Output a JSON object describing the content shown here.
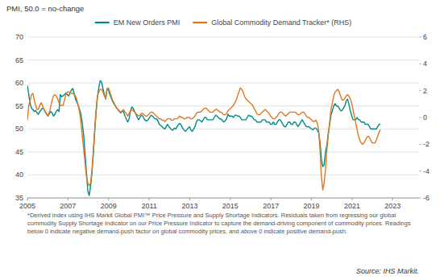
{
  "chart_data": {
    "type": "line",
    "title": "PMI, 50.0 = no-change",
    "footnote": "*Derived index using IHS Markit Global PMI™ Price Pressure  and Supply Shortage Indicators. Residuals taken from regressing our global commodity Supply Shortage Indicator on our Price Pressure  Indicator to capture the demand-driving component of commodity prices. Readings below 0 indicate negative demand-push factor on global commodity prices, and above 0 indicate positive demand-push.",
    "source": "Source: IHS Markit.",
    "xlim": [
      2005.0,
      2024.3
    ],
    "xticks": [
      2005,
      2007,
      2009,
      2011,
      2013,
      2015,
      2017,
      2019,
      2021,
      2023
    ],
    "ylim": [
      35,
      70
    ],
    "yticks": [
      35,
      40,
      45,
      50,
      55,
      60,
      65,
      70
    ],
    "y2lim": [
      -6,
      6
    ],
    "y2ticks": [
      -6,
      -4,
      -2,
      0,
      2,
      4,
      6
    ],
    "grid": true,
    "legend": "top",
    "x": [
      2005.0,
      2005.068,
      2005.135,
      2005.203,
      2005.271,
      2005.339,
      2005.406,
      2005.474,
      2005.542,
      2005.609,
      2005.677,
      2005.745,
      2005.812,
      2005.88,
      2005.948,
      2006.016,
      2006.083,
      2006.151,
      2006.219,
      2006.286,
      2006.354,
      2006.422,
      2006.489,
      2006.557,
      2006.625,
      2006.693,
      2006.76,
      2006.828,
      2006.896,
      2006.963,
      2007.031,
      2007.099,
      2007.167,
      2007.234,
      2007.302,
      2007.37,
      2007.437,
      2007.505,
      2007.573,
      2007.64,
      2007.708,
      2007.776,
      2007.844,
      2007.911,
      2007.979,
      2008.047,
      2008.114,
      2008.182,
      2008.25,
      2008.318,
      2008.385,
      2008.453,
      2008.521,
      2008.588,
      2008.656,
      2008.724,
      2008.791,
      2008.859,
      2008.927,
      2008.995,
      2009.062,
      2009.13,
      2009.198,
      2009.265,
      2009.333,
      2009.401,
      2009.468,
      2009.536,
      2009.604,
      2009.672,
      2009.739,
      2009.807,
      2009.875,
      2009.942,
      2010.01,
      2010.078,
      2010.146,
      2010.213,
      2010.281,
      2010.349,
      2010.416,
      2010.484,
      2010.552,
      2010.619,
      2010.687,
      2010.755,
      2010.823,
      2010.89,
      2010.958,
      2011.026,
      2011.093,
      2011.161,
      2011.229,
      2011.296,
      2011.364,
      2011.432,
      2011.5,
      2011.567,
      2011.635,
      2011.703,
      2011.77,
      2011.838,
      2011.906,
      2011.974,
      2012.041,
      2012.109,
      2012.177,
      2012.244,
      2012.312,
      2012.38,
      2012.447,
      2012.515,
      2012.583,
      2012.651,
      2012.718,
      2012.786,
      2012.854,
      2012.921,
      2012.989,
      2013.057,
      2013.125,
      2013.192,
      2013.26,
      2013.328,
      2013.395,
      2013.463,
      2013.531,
      2013.598,
      2013.666,
      2013.734,
      2013.802,
      2013.869,
      2013.937,
      2014.005,
      2014.072,
      2014.14,
      2014.208,
      2014.275,
      2014.343,
      2014.411,
      2014.479,
      2014.546,
      2014.614,
      2014.682,
      2014.749,
      2014.817,
      2014.885,
      2014.953,
      2015.02,
      2015.088,
      2015.156,
      2015.223,
      2015.291,
      2015.359,
      2015.426,
      2015.494,
      2015.562,
      2015.63,
      2015.697,
      2015.765,
      2015.833,
      2015.9,
      2015.968,
      2016.036,
      2016.104,
      2016.171,
      2016.239,
      2016.307,
      2016.374,
      2016.442,
      2016.51,
      2016.577,
      2016.645,
      2016.713,
      2016.781,
      2016.848,
      2016.916,
      2016.984,
      2017.051,
      2017.119,
      2017.187,
      2017.254,
      2017.322,
      2017.39,
      2017.458,
      2017.525,
      2017.593,
      2017.661,
      2017.728,
      2017.796,
      2017.864,
      2017.932,
      2017.999,
      2018.067,
      2018.135,
      2018.202,
      2018.27,
      2018.338,
      2018.405,
      2018.473,
      2018.541,
      2018.609,
      2018.676,
      2018.744,
      2018.812,
      2018.879,
      2018.947,
      2019.015,
      2019.082,
      2019.15,
      2019.218,
      2019.286,
      2019.353,
      2019.421,
      2019.489,
      2019.556,
      2019.624,
      2019.692,
      2019.76,
      2019.827,
      2019.895,
      2019.963,
      2020.03,
      2020.098,
      2020.166,
      2020.233,
      2020.301,
      2020.369,
      2020.437,
      2020.504,
      2020.572,
      2020.64,
      2020.707,
      2020.775,
      2020.843,
      2020.911,
      2020.978,
      2021.046,
      2021.114,
      2021.181,
      2021.249,
      2021.317,
      2021.384,
      2021.452,
      2021.52,
      2021.588,
      2021.655,
      2021.723,
      2021.791,
      2021.858,
      2021.926,
      2021.994,
      2022.061,
      2022.129,
      2022.197,
      2022.265,
      2022.332,
      2022.4
    ],
    "series": [
      {
        "name": "EM New Orders PMI",
        "color": "#008B8B",
        "values": [
          59.5,
          57.5,
          55.5,
          54.5,
          54.2,
          53.8,
          54.0,
          53.5,
          53.2,
          53.8,
          54.2,
          54.5,
          54.3,
          53.8,
          53.2,
          52.8,
          53.3,
          53.8,
          53.5,
          52.8,
          53.2,
          53.8,
          54.2,
          53.8,
          57.5,
          57.0,
          57.2,
          57.5,
          57.8,
          57.5,
          57.2,
          57.8,
          58.5,
          58.8,
          57.8,
          56.5,
          55.8,
          55.2,
          54.2,
          53.2,
          51.2,
          48.5,
          44.5,
          40.5,
          36.5,
          35.5,
          37.5,
          40.5,
          44.5,
          49.5,
          53.5,
          57.0,
          59.0,
          60.5,
          60.2,
          58.8,
          57.5,
          56.5,
          58.8,
          58.5,
          57.5,
          56.8,
          56.0,
          55.5,
          55.0,
          54.5,
          54.2,
          53.8,
          53.5,
          53.8,
          53.8,
          52.8,
          52.2,
          51.5,
          52.2,
          53.8,
          54.8,
          54.5,
          53.8,
          53.2,
          52.5,
          52.0,
          52.5,
          53.0,
          52.8,
          52.2,
          51.8,
          51.8,
          52.0,
          52.5,
          53.0,
          52.8,
          52.5,
          52.2,
          52.2,
          51.8,
          51.0,
          50.8,
          50.5,
          50.2,
          50.0,
          50.5,
          51.0,
          50.5,
          50.2,
          49.8,
          49.8,
          50.2,
          50.0,
          50.5,
          51.0,
          51.2,
          50.8,
          50.2,
          49.8,
          49.5,
          49.8,
          50.2,
          50.5,
          49.8,
          49.5,
          50.0,
          50.5,
          51.5,
          52.0,
          52.0,
          51.8,
          51.5,
          52.0,
          52.5,
          52.5,
          52.0,
          52.0,
          52.0,
          52.0,
          52.0,
          52.5,
          53.0,
          52.8,
          52.5,
          52.2,
          52.2,
          51.8,
          51.5,
          51.8,
          52.2,
          53.2,
          52.8,
          52.8,
          52.8,
          52.5,
          53.0,
          53.0,
          52.8,
          52.8,
          52.5,
          52.0,
          52.0,
          52.0,
          52.0,
          52.5,
          53.0,
          52.8,
          52.8,
          52.5,
          52.0,
          52.0,
          51.5,
          51.5,
          51.5,
          51.5,
          52.0,
          52.0,
          52.0,
          51.5,
          51.5,
          51.5,
          51.0,
          51.0,
          51.5,
          51.0,
          51.0,
          51.5,
          52.0,
          52.0,
          51.5,
          51.0,
          50.5,
          50.5,
          51.0,
          51.5,
          51.5,
          51.0,
          51.0,
          51.5,
          51.5,
          51.0,
          50.5,
          51.0,
          51.5,
          52.0,
          51.5,
          51.0,
          50.5,
          50.5,
          50.5,
          50.2,
          50.0,
          49.8,
          50.2,
          50.2,
          49.8,
          49.2,
          47.2,
          43.5,
          41.8,
          42.2,
          45.0,
          46.5,
          49.0,
          51.0,
          53.0,
          54.0,
          55.0,
          55.5,
          55.0,
          55.0,
          54.5,
          54.0,
          54.0,
          54.5,
          55.0,
          56.0,
          56.5,
          55.5,
          54.0,
          53.0,
          52.0,
          52.0,
          52.0,
          52.5,
          52.0,
          52.0,
          51.5,
          51.5,
          51.5,
          51.0,
          51.0,
          51.0,
          50.5,
          50.0,
          50.0,
          50.0,
          50.0,
          50.0,
          50.5,
          51.0,
          51.0
        ]
      },
      {
        "name": "Global Commodity Demand Tracker* (RHS)",
        "color": "#E07820",
        "axis": "y2",
        "values": [
          -0.2,
          0.9,
          1.3,
          1.7,
          1.8,
          1.3,
          0.9,
          0.6,
          0.6,
          0.9,
          1.1,
          0.9,
          0.6,
          0.4,
          0.3,
          0.1,
          0.4,
          0.8,
          1.3,
          1.6,
          1.7,
          1.6,
          1.4,
          1.1,
          0.9,
          0.9,
          0.9,
          1.3,
          1.7,
          1.9,
          1.9,
          1.9,
          1.8,
          1.8,
          1.7,
          1.6,
          1.3,
          0.9,
          0.4,
          -0.4,
          -1.4,
          -2.4,
          -3.4,
          -4.4,
          -4.9,
          -5.1,
          -4.9,
          -3.9,
          -2.4,
          -0.9,
          0.6,
          1.6,
          1.9,
          2.1,
          2.1,
          1.9,
          1.6,
          1.4,
          2.1,
          2.2,
          1.9,
          1.6,
          1.3,
          1.1,
          0.9,
          0.7,
          0.6,
          0.5,
          0.4,
          0.5,
          0.6,
          0.4,
          0.3,
          0.1,
          0.3,
          0.5,
          0.6,
          0.5,
          0.4,
          0.3,
          0.2,
          0.1,
          0.2,
          0.3,
          0.3,
          0.2,
          0.1,
          0.1,
          0.2,
          0.3,
          0.4,
          0.4,
          0.3,
          0.2,
          0.1,
          0.0,
          -0.1,
          -0.1,
          -0.2,
          -0.2,
          -0.3,
          -0.2,
          -0.1,
          -0.1,
          -0.1,
          -0.2,
          -0.2,
          -0.1,
          -0.1,
          -0.1,
          0.0,
          0.1,
          0.0,
          0.0,
          -0.1,
          -0.1,
          0.0,
          0.0,
          0.0,
          -0.1,
          -0.1,
          0.0,
          0.1,
          0.3,
          0.4,
          0.4,
          0.4,
          0.5,
          0.6,
          0.7,
          0.7,
          0.6,
          0.5,
          0.4,
          0.4,
          0.4,
          0.5,
          0.6,
          0.6,
          0.5,
          0.4,
          0.4,
          0.3,
          0.2,
          0.2,
          0.3,
          0.5,
          0.6,
          0.7,
          0.8,
          0.9,
          1.1,
          1.3,
          1.6,
          1.9,
          2.2,
          2.1,
          1.9,
          1.6,
          1.4,
          1.3,
          1.2,
          1.1,
          1.0,
          0.9,
          0.7,
          0.5,
          0.3,
          0.2,
          0.2,
          0.3,
          0.4,
          0.5,
          0.6,
          0.5,
          0.4,
          0.3,
          0.1,
          0.0,
          -0.1,
          -0.1,
          0.0,
          0.1,
          0.3,
          0.4,
          0.4,
          0.3,
          0.2,
          0.1,
          0.2,
          0.3,
          0.4,
          0.4,
          0.4,
          0.4,
          0.4,
          0.3,
          0.2,
          0.2,
          0.3,
          0.4,
          0.4,
          0.3,
          0.1,
          0.0,
          0.0,
          -0.1,
          -0.2,
          -0.3,
          -0.3,
          -0.2,
          -0.4,
          -0.9,
          -2.4,
          -4.4,
          -5.4,
          -4.9,
          -3.9,
          -2.4,
          -1.4,
          -0.4,
          0.6,
          1.1,
          1.6,
          1.9,
          2.0,
          2.1,
          1.9,
          1.6,
          1.3,
          1.3,
          1.4,
          1.6,
          1.7,
          1.6,
          1.4,
          1.1,
          0.6,
          0.1,
          -0.4,
          -0.9,
          -1.4,
          -1.7,
          -1.9,
          -2.0,
          -1.9,
          -1.7,
          -1.5,
          -1.4,
          -1.5,
          -1.7,
          -1.9,
          -1.9,
          -1.9,
          -1.7,
          -1.4,
          -1.1,
          -0.9
        ]
      }
    ]
  }
}
